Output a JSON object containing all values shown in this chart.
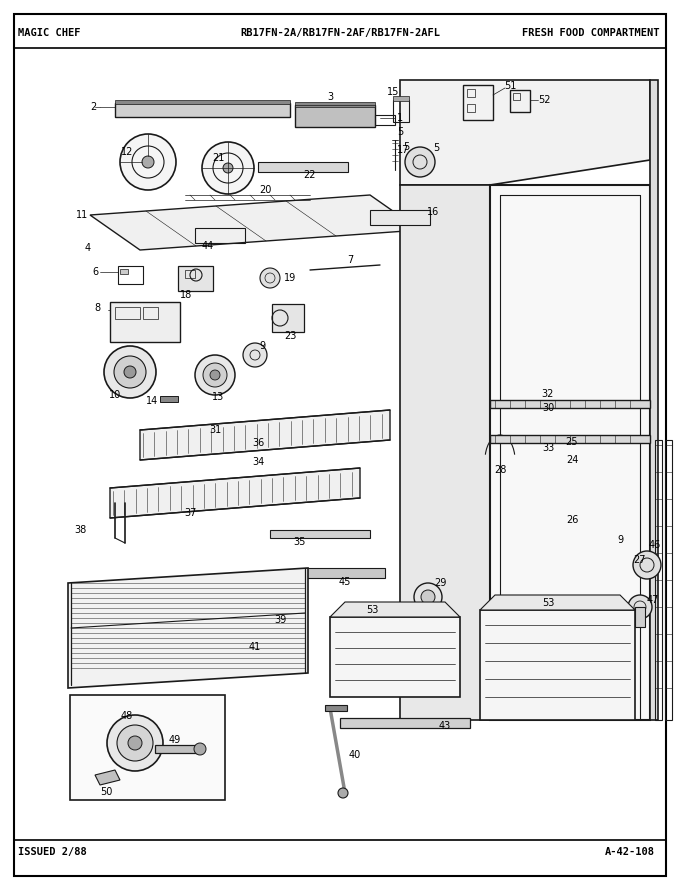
{
  "title_left": "MAGIC CHEF",
  "title_center": "RB17FN-2A/RB17FN-2AF/RB17FN-2AFL",
  "title_right": "FRESH FOOD COMPARTMENT",
  "footer_left": "ISSUED 2/88",
  "footer_right": "A-42-108",
  "bg_color": "#ffffff",
  "border_color": "#000000",
  "text_color": "#000000",
  "fig_width": 6.8,
  "fig_height": 8.9,
  "dpi": 100
}
